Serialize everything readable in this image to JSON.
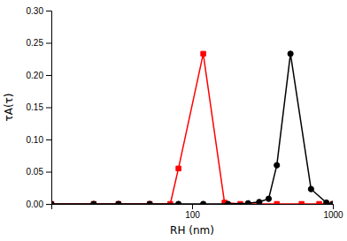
{
  "chart_data": {
    "type": "line",
    "xlabel": "RH (nm)",
    "ylabel": "τA(τ)",
    "log": "x",
    "grid": false,
    "xlim": [
      10,
      1000
    ],
    "xticks": [
      100,
      1000
    ],
    "ylim": [
      0.0,
      0.3
    ],
    "yticks": [
      {
        "value": 0.0,
        "label": "0.00"
      },
      0.05,
      {
        "value": 0.1,
        "label": "0.10"
      },
      0.15,
      {
        "value": 0.2,
        "label": "0.20"
      },
      0.25,
      {
        "value": 0.3,
        "label": "0.30"
      }
    ],
    "series": [
      {
        "color": "#ff0000",
        "marker": "square",
        "x": [
          10,
          20,
          30,
          50,
          70,
          80,
          120,
          170,
          220,
          300,
          400,
          600,
          800,
          1000
        ],
        "values": [
          0.0,
          0.0,
          0.0,
          0.0,
          0.0,
          0.055,
          0.233,
          0.002,
          0.0,
          0.0,
          0.0,
          0.0,
          0.0,
          0.0
        ]
      },
      {
        "color": "#000000",
        "marker": "circle",
        "x": [
          10,
          20,
          30,
          50,
          80,
          120,
          180,
          250,
          300,
          350,
          400,
          500,
          700,
          900,
          1000
        ],
        "values": [
          0.0,
          0.0,
          0.0,
          0.0,
          0.0,
          0.0,
          0.0,
          0.001,
          0.003,
          0.008,
          0.06,
          0.233,
          0.023,
          0.002,
          0.0
        ]
      }
    ]
  }
}
